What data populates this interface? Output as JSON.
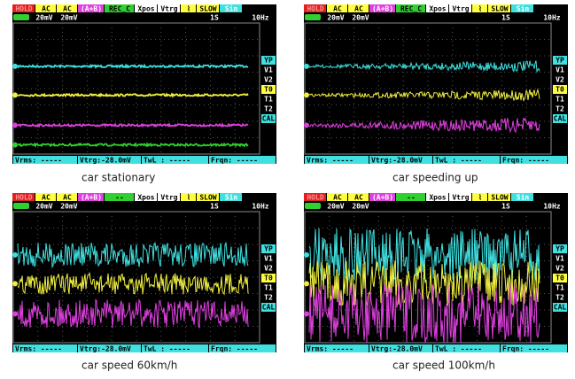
{
  "panels": [
    {
      "caption": "car stationary",
      "header": [
        "HOLD",
        "AC",
        "AC",
        "(A+B)",
        "REC_C",
        "Xpos",
        "Vtrg",
        "⌇",
        "SLOW",
        "Sin"
      ],
      "row2": [
        "20mV",
        "20mV",
        "1S",
        "10Hz"
      ],
      "side": [
        "YP",
        "V1",
        "V2",
        "T0",
        "T1",
        "T2",
        "CAL"
      ],
      "footer": [
        "Vrms: -----",
        "Vtrg:-28.0mV",
        "TwL : -----",
        "Frqn: -----"
      ]
    },
    {
      "caption": "car speeding up",
      "header": [
        "HOLD",
        "AC",
        "AC",
        "(A+B)",
        "REC_C",
        "Xpos",
        "Vtrg",
        "⌇",
        "SLOW",
        "Sin"
      ],
      "row2": [
        "20mV",
        "20mV",
        "1S",
        "10Hz"
      ],
      "side": [
        "YP",
        "V1",
        "V2",
        "T0",
        "T1",
        "T2",
        "CAL"
      ],
      "footer": [
        "Vrms: -----",
        "Vtrg:-28.0mV",
        "TwL : -----",
        "Frqn: -----"
      ]
    },
    {
      "caption": "car speed 60km/h",
      "header": [
        "HOLD",
        "AC",
        "AC",
        "(A+B)",
        "--",
        "Xpos",
        "Vtrg",
        "⌇",
        "SLOW",
        "Sin"
      ],
      "row2": [
        "20mV",
        "20mV",
        "1S",
        "10Hz"
      ],
      "side": [
        "YP",
        "V1",
        "V2",
        "T0",
        "T1",
        "T2",
        "CAL"
      ],
      "footer": [
        "Vrms: -----",
        "Vtrg:-28.0mV",
        "TwL : -----",
        "Frqn: -----"
      ]
    },
    {
      "caption": "car speed 100km/h",
      "header": [
        "HOLD",
        "AC",
        "AC",
        "(A+B)",
        "--",
        "Xpos",
        "Vtrg",
        "⌇",
        "SLOW",
        "Sin"
      ],
      "row2": [
        "20mV",
        "20mV",
        "1S",
        "10Hz"
      ],
      "side": [
        "YP",
        "V1",
        "V2",
        "T0",
        "T1",
        "T2",
        "CAL"
      ],
      "footer": [
        "Vrms: -----",
        "Vtrg:-28.0mV",
        "TwL : -----",
        "Frqn: -----"
      ]
    }
  ]
}
